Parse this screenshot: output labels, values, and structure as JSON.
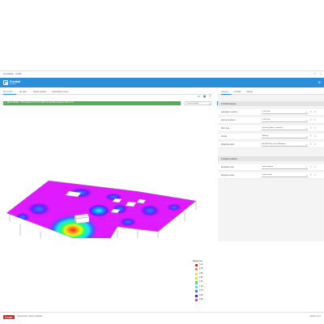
{
  "window": {
    "title": "Foundation - CADS",
    "controls": [
      "–",
      "☐",
      "✕"
    ]
  },
  "app": {
    "name": "Footfall",
    "subtitle": "Analysis",
    "settings_icon": "gear-icon"
  },
  "tabs": [
    {
      "label": "3D model",
      "active": true
    },
    {
      "label": "3D plan",
      "active": false
    },
    {
      "label": "Result graphs",
      "active": false
    },
    {
      "label": "Calculation report",
      "active": false
    }
  ],
  "notice": {
    "text": "Check passes - The response of 3.14 is within the specified response limit of 4.0",
    "close": "✕"
  },
  "type_select": {
    "value": "Vertical Footfall",
    "chevron": "▾"
  },
  "calculate_button": {
    "label": "Calculate"
  },
  "right_tabs": [
    {
      "label": "Analysis",
      "active": true
    },
    {
      "label": "Footfall",
      "active": false
    },
    {
      "label": "Options",
      "active": false
    }
  ],
  "footfall_section": {
    "title": "Footfall analysis",
    "rows": [
      {
        "label": "Calculation method",
        "value": "CCIP-016"
      },
      {
        "label": "Forcing functions",
        "value": "CCIP-016"
      },
      {
        "label": "Floor type",
        "value": "General (Office, Domestic)"
      },
      {
        "label": "Activity",
        "value": "Walking"
      },
      {
        "label": "Weighting factor",
        "value": "BS 6841 Wg (curve Whiteline)"
      }
    ]
  },
  "excitation_section": {
    "title": "Footfall excitation",
    "rows": [
      {
        "label": "Excitation node",
        "value": "Self excitation"
      },
      {
        "label": "Response node",
        "value": "Critical node"
      }
    ]
  },
  "legend": {
    "title": "Response",
    "items": [
      {
        "value": "3.14",
        "color": "#ff1a1a"
      },
      {
        "value": "2.75",
        "color": "#ff8c1a"
      },
      {
        "value": "2.36",
        "color": "#ffe61a"
      },
      {
        "value": "1.97",
        "color": "#b3ff1a"
      },
      {
        "value": "1.57",
        "color": "#1aff66"
      },
      {
        "value": "1.18",
        "color": "#1affe6"
      },
      {
        "value": "0.79",
        "color": "#1a8cff"
      },
      {
        "value": "0.39",
        "color": "#4d1aff"
      },
      {
        "value": "0.00",
        "color": "#ff1aff"
      }
    ]
  },
  "footer": {
    "logo": "CADS",
    "text": "Construction Industry Software",
    "version": "Version 1.0.0"
  }
}
